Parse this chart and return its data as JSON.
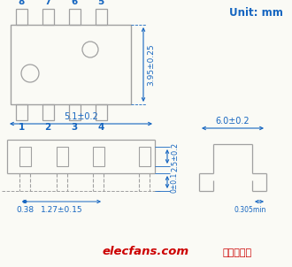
{
  "unit_text": "Unit: mm",
  "unit_color": "#1565C0",
  "pin_labels_top": [
    "8",
    "7",
    "6",
    "5"
  ],
  "pin_labels_bottom": [
    "1",
    "2",
    "3",
    "4"
  ],
  "pin_label_color": "#1565C0",
  "dim_color": "#1565C0",
  "line_color": "#a0a0a0",
  "dim_3_95": "3.95±0.25",
  "dim_5_1": "5.1±0.2",
  "dim_6_0": "6.0±0.2",
  "dim_2_5": "2.5±0.2",
  "dim_0_1": "0±0.1",
  "dim_1_27": "1.27±0.15",
  "dim_0_38": "0.38",
  "dim_0_305": "0.305min",
  "watermark": "elecfans.com",
  "watermark_color": "#cc0000",
  "watermark2": "电子发烧友",
  "watermark2_color": "#cc0000",
  "bg_color": "#fafaf5"
}
